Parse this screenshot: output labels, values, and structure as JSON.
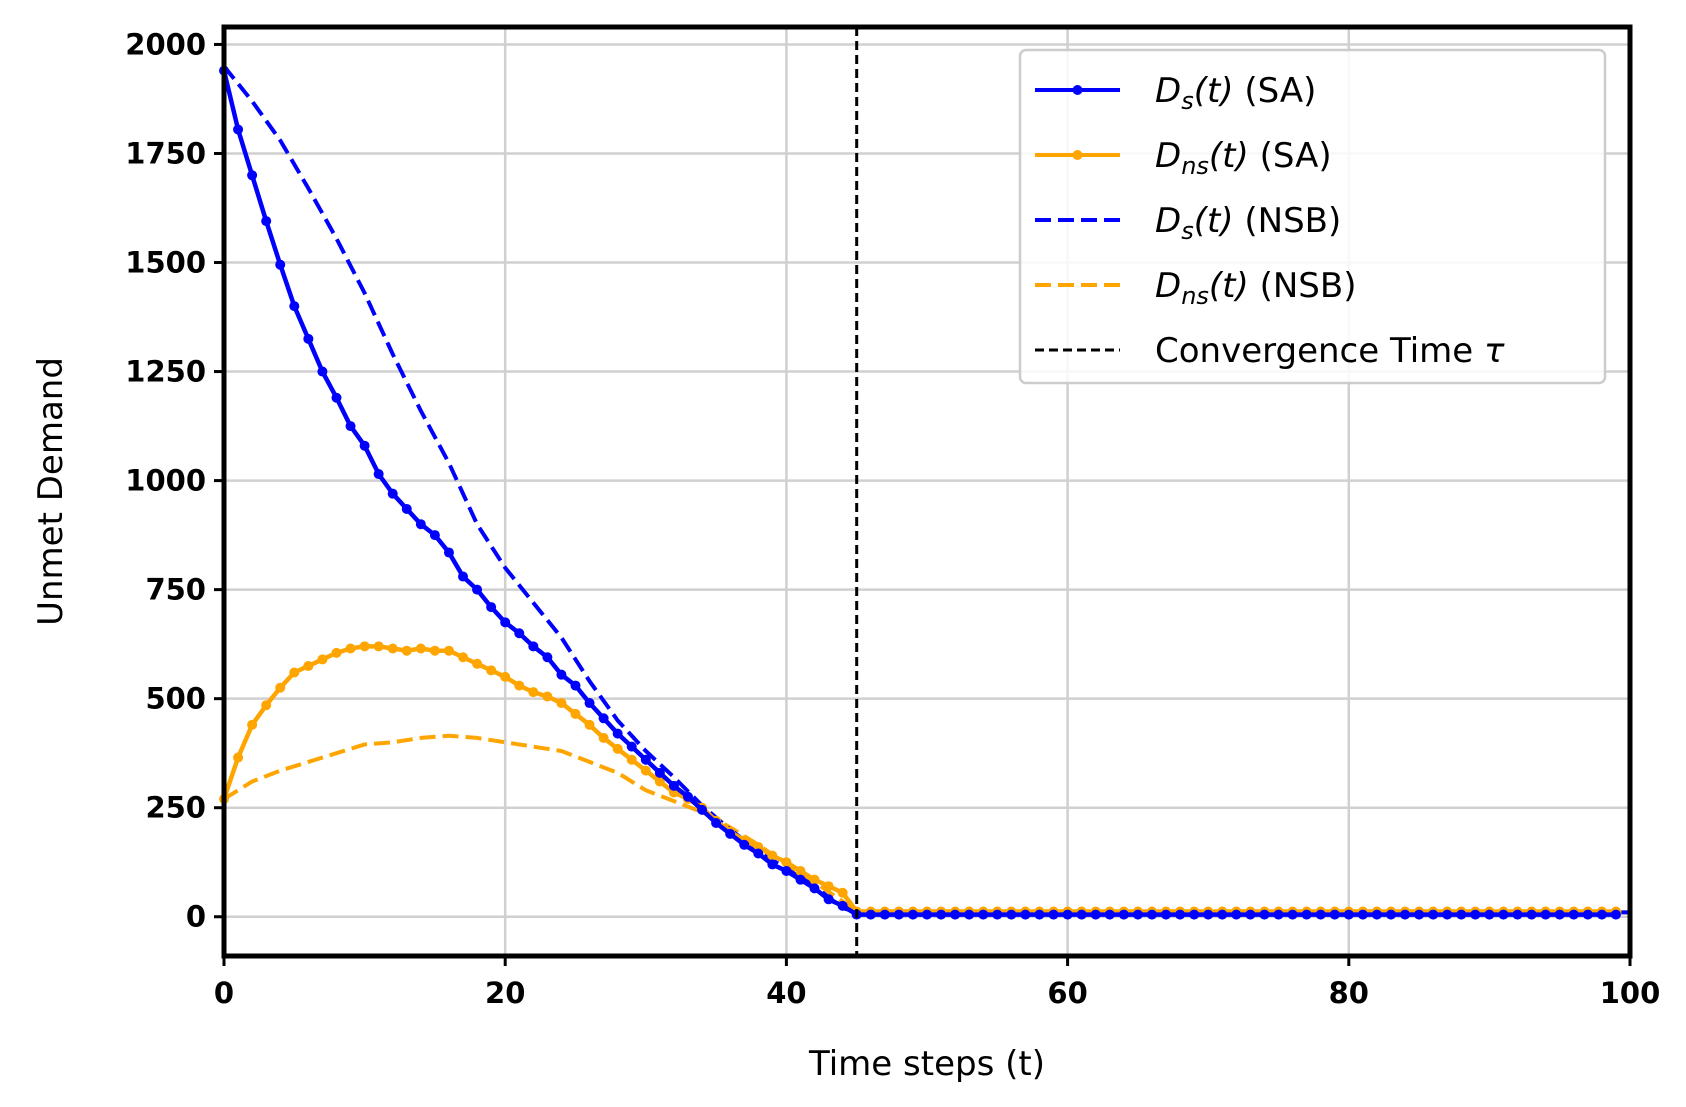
{
  "chart_data": {
    "type": "line",
    "title": "",
    "xlabel": "Time steps (t)",
    "ylabel": "Unmet Demand",
    "xlim": [
      0,
      100
    ],
    "ylim": [
      -90,
      2040
    ],
    "xticks": [
      0,
      20,
      40,
      60,
      80,
      100
    ],
    "yticks": [
      0,
      250,
      500,
      750,
      1000,
      1250,
      1500,
      1750,
      2000
    ],
    "grid": true,
    "legend_position": "top-right",
    "convergence_time": 45,
    "series": [
      {
        "key": "ds_sa",
        "legend_main": "D",
        "legend_sub": "s",
        "legend_var": "(t)",
        "legend_tag": " (SA)",
        "color": "#0000ff",
        "style": "solid-markers",
        "x": [
          0,
          1,
          2,
          3,
          4,
          5,
          6,
          7,
          8,
          9,
          10,
          11,
          12,
          13,
          14,
          15,
          16,
          17,
          18,
          19,
          20,
          21,
          22,
          23,
          24,
          25,
          26,
          27,
          28,
          29,
          30,
          31,
          32,
          33,
          34,
          35,
          36,
          37,
          38,
          39,
          40,
          41,
          42,
          43,
          44,
          45,
          46,
          47,
          48,
          49,
          50,
          51,
          52,
          53,
          54,
          55,
          56,
          57,
          58,
          59,
          60,
          61,
          62,
          63,
          64,
          65,
          66,
          67,
          68,
          69,
          70,
          71,
          72,
          73,
          74,
          75,
          76,
          77,
          78,
          79,
          80,
          81,
          82,
          83,
          84,
          85,
          86,
          87,
          88,
          89,
          90,
          91,
          92,
          93,
          94,
          95,
          96,
          97,
          98,
          99
        ],
        "y": [
          1940,
          1805,
          1700,
          1595,
          1495,
          1400,
          1325,
          1250,
          1190,
          1125,
          1080,
          1015,
          970,
          935,
          900,
          875,
          835,
          780,
          750,
          710,
          675,
          650,
          620,
          595,
          555,
          530,
          490,
          455,
          420,
          390,
          360,
          330,
          300,
          275,
          245,
          215,
          190,
          165,
          145,
          120,
          105,
          85,
          65,
          40,
          25,
          5,
          5,
          5,
          5,
          5,
          5,
          5,
          5,
          5,
          5,
          5,
          5,
          5,
          5,
          5,
          5,
          5,
          5,
          5,
          5,
          5,
          5,
          5,
          5,
          5,
          5,
          5,
          5,
          5,
          5,
          5,
          5,
          5,
          5,
          5,
          5,
          5,
          5,
          5,
          5,
          5,
          5,
          5,
          5,
          5,
          5,
          5,
          5,
          5,
          5,
          5,
          5,
          5,
          5,
          5
        ]
      },
      {
        "key": "dns_sa",
        "legend_main": "D",
        "legend_sub": "ns",
        "legend_var": "(t)",
        "legend_tag": " (SA)",
        "color": "#ffa500",
        "style": "solid-markers",
        "x": [
          0,
          1,
          2,
          3,
          4,
          5,
          6,
          7,
          8,
          9,
          10,
          11,
          12,
          13,
          14,
          15,
          16,
          17,
          18,
          19,
          20,
          21,
          22,
          23,
          24,
          25,
          26,
          27,
          28,
          29,
          30,
          31,
          32,
          33,
          34,
          35,
          36,
          37,
          38,
          39,
          40,
          41,
          42,
          43,
          44,
          45,
          46,
          47,
          48,
          49,
          50,
          51,
          52,
          53,
          54,
          55,
          56,
          57,
          58,
          59,
          60,
          61,
          62,
          63,
          64,
          65,
          66,
          67,
          68,
          69,
          70,
          71,
          72,
          73,
          74,
          75,
          76,
          77,
          78,
          79,
          80,
          81,
          82,
          83,
          84,
          85,
          86,
          87,
          88,
          89,
          90,
          91,
          92,
          93,
          94,
          95,
          96,
          97,
          98,
          99
        ],
        "y": [
          270,
          365,
          440,
          485,
          525,
          560,
          575,
          590,
          605,
          615,
          620,
          620,
          615,
          610,
          615,
          610,
          610,
          595,
          580,
          565,
          550,
          530,
          515,
          505,
          490,
          465,
          440,
          410,
          385,
          360,
          335,
          310,
          285,
          270,
          250,
          220,
          195,
          175,
          160,
          140,
          125,
          105,
          85,
          70,
          55,
          12,
          12,
          12,
          12,
          12,
          12,
          12,
          12,
          12,
          12,
          12,
          12,
          12,
          12,
          12,
          12,
          12,
          12,
          12,
          12,
          12,
          12,
          12,
          12,
          12,
          12,
          12,
          12,
          12,
          12,
          12,
          12,
          12,
          12,
          12,
          12,
          12,
          12,
          12,
          12,
          12,
          12,
          12,
          12,
          12,
          12,
          12,
          12,
          12,
          12,
          12,
          12,
          12,
          12,
          12
        ]
      },
      {
        "key": "ds_nsb",
        "legend_main": "D",
        "legend_sub": "s",
        "legend_var": "(t)",
        "legend_tag": " (NSB)",
        "color": "#0000ff",
        "style": "dashed",
        "x": [
          0,
          2,
          4,
          6,
          8,
          10,
          12,
          14,
          16,
          18,
          20,
          22,
          24,
          26,
          28,
          30,
          32,
          34,
          36,
          38,
          40,
          42,
          44,
          45,
          100
        ],
        "y": [
          1950,
          1870,
          1780,
          1670,
          1555,
          1430,
          1290,
          1160,
          1040,
          900,
          800,
          720,
          640,
          540,
          450,
          380,
          320,
          255,
          200,
          150,
          110,
          70,
          20,
          10,
          10
        ]
      },
      {
        "key": "dns_nsb",
        "legend_main": "D",
        "legend_sub": "ns",
        "legend_var": "(t)",
        "legend_tag": " (NSB)",
        "color": "#ffa500",
        "style": "dashed",
        "x": [
          0,
          2,
          4,
          6,
          8,
          10,
          12,
          14,
          16,
          18,
          20,
          22,
          24,
          26,
          28,
          30,
          32,
          34,
          36,
          38,
          40,
          42,
          44,
          45,
          100
        ],
        "y": [
          270,
          310,
          335,
          355,
          375,
          395,
          400,
          410,
          415,
          410,
          400,
          390,
          380,
          355,
          330,
          290,
          265,
          240,
          205,
          165,
          120,
          80,
          35,
          10,
          10
        ]
      }
    ],
    "vline_legend": "Convergence Time ",
    "vline_legend_symbol": "τ",
    "vline_color": "#000000"
  }
}
